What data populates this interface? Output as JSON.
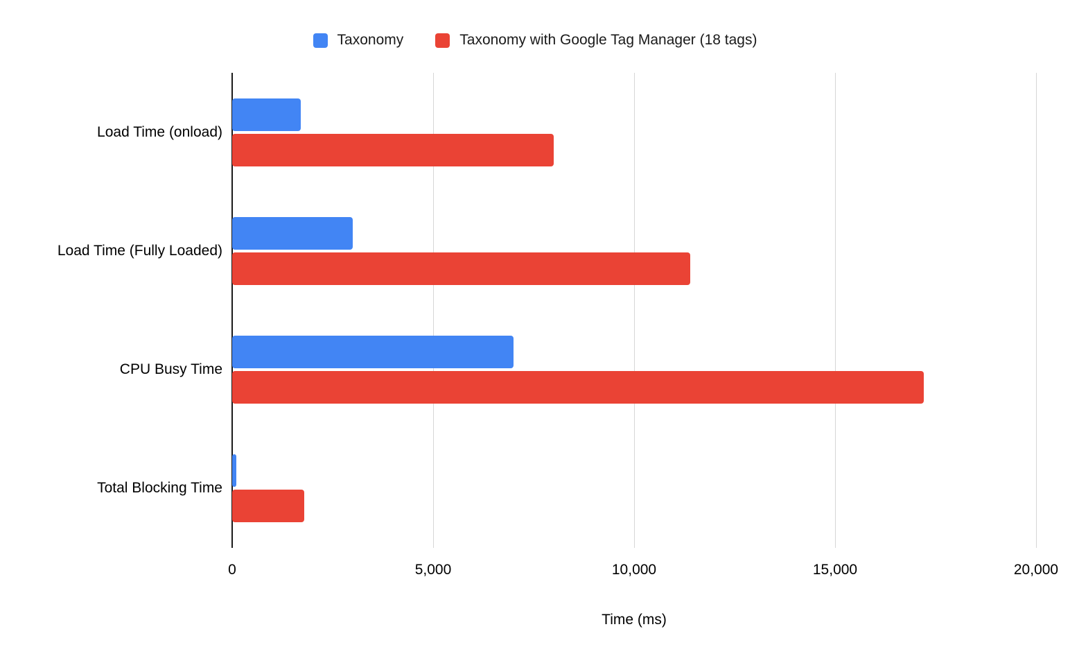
{
  "chart_data": {
    "type": "bar",
    "orientation": "horizontal",
    "title": "",
    "xlabel": "Time (ms)",
    "ylabel": "",
    "xlim": [
      0,
      20000
    ],
    "xticks": [
      0,
      5000,
      10000,
      15000,
      20000
    ],
    "xtick_labels": [
      "0",
      "5,000",
      "10,000",
      "15,000",
      "20,000"
    ],
    "grid": true,
    "legend_position": "top",
    "categories": [
      "Load Time (onload)",
      "Load Time (Fully Loaded)",
      "CPU Busy Time",
      "Total Blocking Time"
    ],
    "series": [
      {
        "name": "Taxonomy",
        "color": "#4285F4",
        "values": [
          1700,
          3000,
          7000,
          100
        ]
      },
      {
        "name": "Taxonomy with Google Tag Manager (18 tags)",
        "color": "#EA4335",
        "values": [
          8000,
          11400,
          17200,
          1800
        ]
      }
    ],
    "colors": {
      "background": "#ffffff",
      "gridline": "#d6d6d6",
      "axis": "#1a1a1a"
    }
  }
}
